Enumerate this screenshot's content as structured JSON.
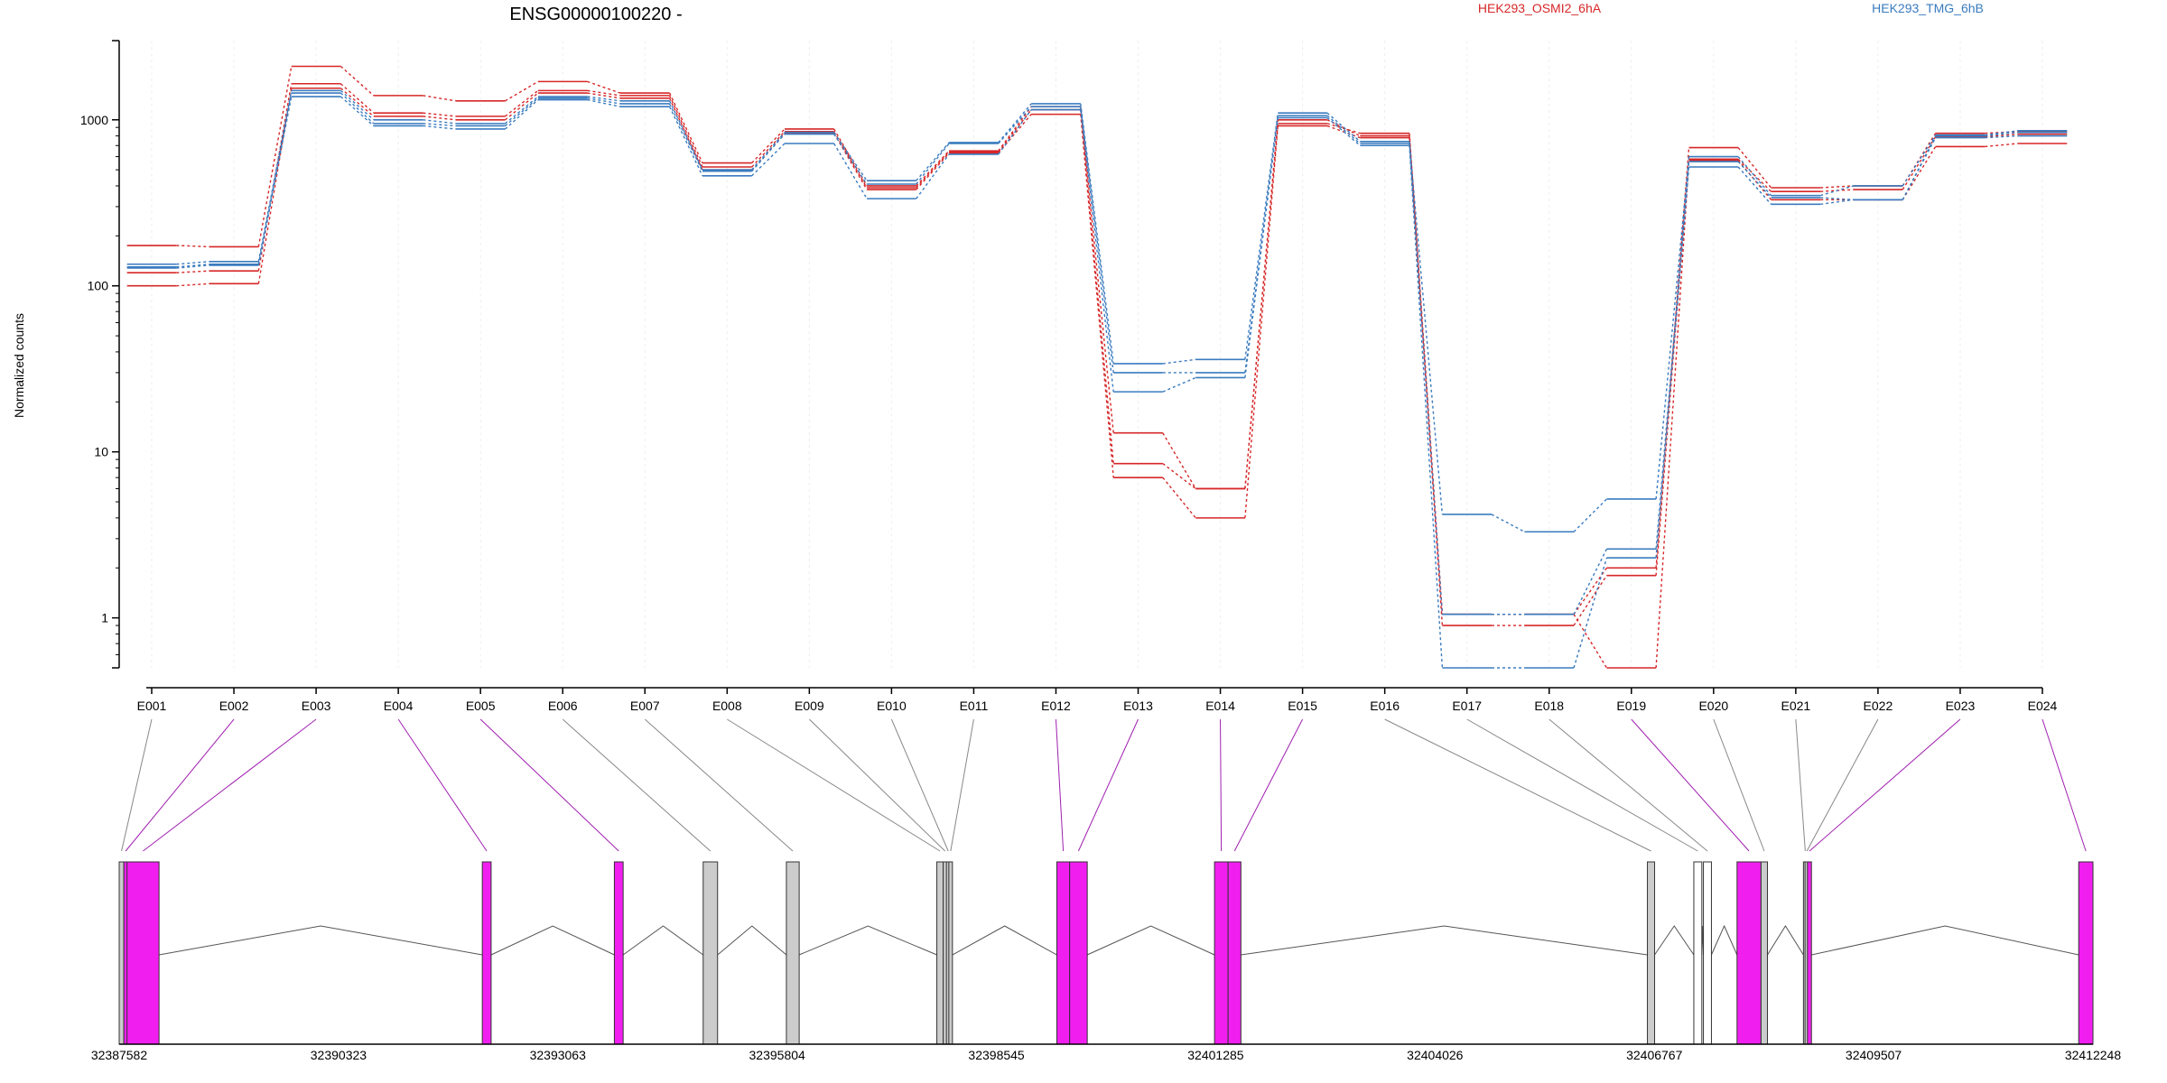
{
  "chart_data": {
    "type": "line",
    "title": "ENSG00000100220 -",
    "ylabel": "Normalized counts",
    "yscale": "log",
    "ylim": [
      0.5,
      3000
    ],
    "ytick_values": [
      1,
      10,
      100,
      1000
    ],
    "ytick_labels": [
      "1",
      "10",
      "100",
      "1000"
    ],
    "legend": [
      {
        "name": "HEK293_OSMI2_6hA",
        "color": "#d62728"
      },
      {
        "name": "HEK293_TMG_6hB",
        "color": "#3a7bbf"
      }
    ],
    "categories": [
      "E001",
      "E002",
      "E003",
      "E004",
      "E005",
      "E006",
      "E007",
      "E008",
      "E009",
      "E010",
      "E011",
      "E012",
      "E013",
      "E014",
      "E015",
      "E016",
      "E017",
      "E018",
      "E019",
      "E020",
      "E021",
      "E022",
      "E023",
      "E024"
    ],
    "series": [
      {
        "group": "HEK293_OSMI2_6hA",
        "color": "#d62728",
        "values": [
          175,
          172,
          2100,
          1400,
          1300,
          1700,
          1450,
          550,
          880,
          400,
          650,
          1200,
          13,
          6,
          950,
          830,
          1.05,
          1.05,
          2.0,
          680,
          390,
          400,
          830,
          850
        ]
      },
      {
        "group": "HEK293_OSMI2_6hA",
        "color": "#d62728",
        "values": [
          120,
          123,
          1650,
          1100,
          1050,
          1500,
          1400,
          520,
          850,
          390,
          640,
          1150,
          8.5,
          6,
          1000,
          800,
          0.9,
          0.9,
          1.8,
          580,
          370,
          380,
          790,
          820
        ]
      },
      {
        "group": "HEK293_OSMI2_6hA",
        "color": "#d62728",
        "values": [
          100,
          103,
          1550,
          1050,
          1000,
          1450,
          1350,
          500,
          830,
          380,
          630,
          1080,
          7,
          4,
          920,
          780,
          1.05,
          1.05,
          0.5,
          570,
          330,
          330,
          690,
          720
        ]
      },
      {
        "group": "HEK293_TMG_6hB",
        "color": "#3a7bbf",
        "values": [
          135,
          140,
          1500,
          1000,
          950,
          1380,
          1300,
          500,
          840,
          430,
          730,
          1250,
          34,
          36,
          1100,
          740,
          4.2,
          3.3,
          5.2,
          600,
          350,
          400,
          810,
          860
        ]
      },
      {
        "group": "HEK293_TMG_6hB",
        "color": "#3a7bbf",
        "values": [
          130,
          135,
          1450,
          950,
          920,
          1350,
          1250,
          490,
          820,
          410,
          720,
          1200,
          30,
          30,
          1060,
          720,
          1.05,
          1.05,
          2.6,
          560,
          340,
          330,
          800,
          840
        ]
      },
      {
        "group": "HEK293_TMG_6hB",
        "color": "#3a7bbf",
        "values": [
          128,
          133,
          1380,
          920,
          880,
          1320,
          1200,
          460,
          720,
          335,
          620,
          1150,
          23,
          28,
          1030,
          700,
          0.5,
          0.5,
          2.3,
          520,
          310,
          330,
          780,
          800
        ]
      }
    ],
    "gene_model": {
      "coordinate_labels": [
        "32387582",
        "32390323",
        "32393063",
        "32395804",
        "32398545",
        "32401285",
        "32404026",
        "32406767",
        "32409507",
        "32412248"
      ],
      "exons": [
        {
          "name": "E001",
          "start": 32387582,
          "end": 32387640,
          "color": "#cccccc"
        },
        {
          "name": "E002",
          "start": 32387640,
          "end": 32387680,
          "color": "#f01ff0"
        },
        {
          "name": "E003",
          "start": 32387680,
          "end": 32388080,
          "color": "#f01ff0"
        },
        {
          "name": "E004",
          "start": 32392120,
          "end": 32392230,
          "color": "#f01ff0"
        },
        {
          "name": "E005",
          "start": 32393770,
          "end": 32393880,
          "color": "#f01ff0"
        },
        {
          "name": "E006",
          "start": 32394880,
          "end": 32395060,
          "color": "#cccccc"
        },
        {
          "name": "E007",
          "start": 32395920,
          "end": 32396080,
          "color": "#cccccc"
        },
        {
          "name": "E008",
          "start": 32397800,
          "end": 32397880,
          "color": "#cccccc"
        },
        {
          "name": "E009",
          "start": 32397880,
          "end": 32397920,
          "color": "#cccccc"
        },
        {
          "name": "E010",
          "start": 32397920,
          "end": 32397950,
          "color": "#cccccc"
        },
        {
          "name": "E011",
          "start": 32397950,
          "end": 32397995,
          "color": "#cccccc"
        },
        {
          "name": "E012",
          "start": 32399300,
          "end": 32399460,
          "color": "#f01ff0"
        },
        {
          "name": "E013",
          "start": 32399460,
          "end": 32399680,
          "color": "#f01ff0"
        },
        {
          "name": "E014",
          "start": 32401270,
          "end": 32401440,
          "color": "#f01ff0"
        },
        {
          "name": "E015",
          "start": 32401440,
          "end": 32401600,
          "color": "#f01ff0"
        },
        {
          "name": "E016",
          "start": 32406680,
          "end": 32406770,
          "color": "#cccccc"
        },
        {
          "name": "E017",
          "start": 32407260,
          "end": 32407360,
          "color": "#ffffff"
        },
        {
          "name": "E018",
          "start": 32407380,
          "end": 32407480,
          "color": "#ffffff"
        },
        {
          "name": "E019",
          "start": 32407800,
          "end": 32408100,
          "color": "#f01ff0"
        },
        {
          "name": "E020",
          "start": 32408100,
          "end": 32408180,
          "color": "#cccccc"
        },
        {
          "name": "E021",
          "start": 32408630,
          "end": 32408650,
          "color": "#cccccc"
        },
        {
          "name": "E022",
          "start": 32408650,
          "end": 32408680,
          "color": "#cccccc"
        },
        {
          "name": "E023",
          "start": 32408680,
          "end": 32408730,
          "color": "#f01ff0"
        },
        {
          "name": "E024",
          "start": 32412070,
          "end": 32412248,
          "color": "#f01ff0"
        }
      ],
      "introns": [
        [
          32388080,
          32392120
        ],
        [
          32392230,
          32393770
        ],
        [
          32393880,
          32394880
        ],
        [
          32395060,
          32395920
        ],
        [
          32396080,
          32397800
        ],
        [
          32397995,
          32399300
        ],
        [
          32399680,
          32401270
        ],
        [
          32401600,
          32406680
        ],
        [
          32406770,
          32407260
        ],
        [
          32407360,
          32407380
        ],
        [
          32407480,
          32407800
        ],
        [
          32408180,
          32408630
        ],
        [
          32408730,
          32412070
        ]
      ]
    }
  }
}
